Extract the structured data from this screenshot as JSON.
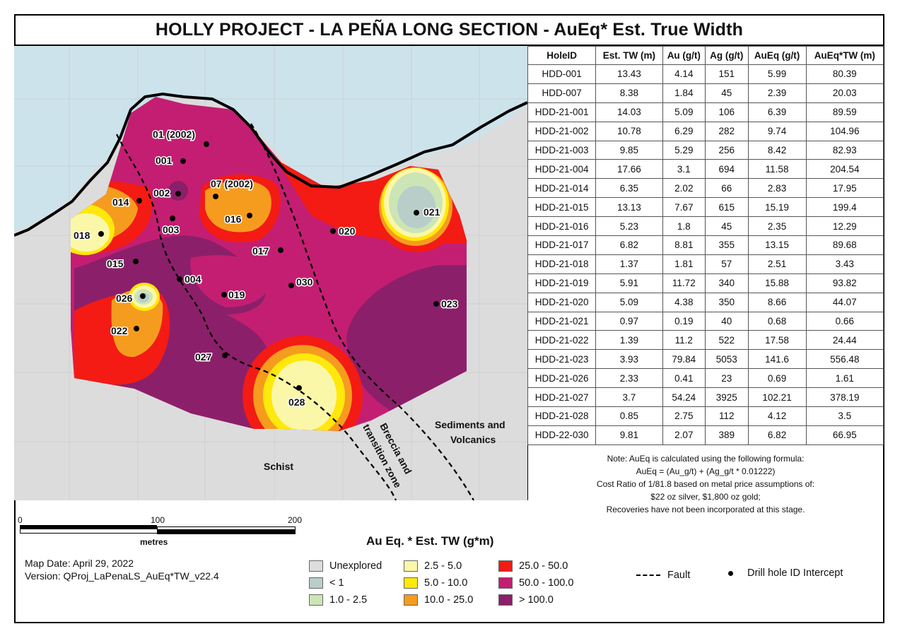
{
  "title": "HOLLY PROJECT  - LA PEÑA LONG SECTION - AuEq* Est. True Width",
  "colors": {
    "sky": "#cde3eb",
    "unexplored": "#dcdcdc",
    "lt1": "#b9cdc9",
    "c1_2_5": "#cbe5b6",
    "c2_5_5": "#fbf7a9",
    "c5_10": "#ffe80b",
    "c10_25": "#f59c1e",
    "c25_50": "#f31b14",
    "c50_100": "#c41e72",
    "gt100": "#8c1f6a"
  },
  "map": {
    "labels": {
      "h01_2002": "01 (2002)",
      "h001": "001",
      "h002": "002",
      "h07_2002": "07 (2002)",
      "h014": "014",
      "h016": "016",
      "h021": "021",
      "h018": "018",
      "h003": "003",
      "h020": "020",
      "h017": "017",
      "h015": "015",
      "h004": "004",
      "h030": "030",
      "h019": "019",
      "h026": "026",
      "h023": "023",
      "h022": "022",
      "h027": "027",
      "h028": "028"
    },
    "zones": {
      "sediments_1": "Sediments and",
      "sediments_2": "Volcanics",
      "schist": "Schist",
      "breccia_1": "Breccia and",
      "breccia_2": "transition zone"
    }
  },
  "table": {
    "headers": [
      "HoleID",
      "Est. TW (m)",
      "Au (g/t)",
      "Ag (g/t)",
      "AuEq (g/t)",
      "AuEq*TW (m)"
    ],
    "rows": [
      [
        "HDD-001",
        "13.43",
        "4.14",
        "151",
        "5.99",
        "80.39"
      ],
      [
        "HDD-007",
        "8.38",
        "1.84",
        "45",
        "2.39",
        "20.03"
      ],
      [
        "HDD-21-001",
        "14.03",
        "5.09",
        "106",
        "6.39",
        "89.59"
      ],
      [
        "HDD-21-002",
        "10.78",
        "6.29",
        "282",
        "9.74",
        "104.96"
      ],
      [
        "HDD-21-003",
        "9.85",
        "5.29",
        "256",
        "8.42",
        "82.93"
      ],
      [
        "HDD-21-004",
        "17.66",
        "3.1",
        "694",
        "11.58",
        "204.54"
      ],
      [
        "HDD-21-014",
        "6.35",
        "2.02",
        "66",
        "2.83",
        "17.95"
      ],
      [
        "HDD-21-015",
        "13.13",
        "7.67",
        "615",
        "15.19",
        "199.4"
      ],
      [
        "HDD-21-016",
        "5.23",
        "1.8",
        "45",
        "2.35",
        "12.29"
      ],
      [
        "HDD-21-017",
        "6.82",
        "8.81",
        "355",
        "13.15",
        "89.68"
      ],
      [
        "HDD-21-018",
        "1.37",
        "1.81",
        "57",
        "2.51",
        "3.43"
      ],
      [
        "HDD-21-019",
        "5.91",
        "11.72",
        "340",
        "15.88",
        "93.82"
      ],
      [
        "HDD-21-020",
        "5.09",
        "4.38",
        "350",
        "8.66",
        "44.07"
      ],
      [
        "HDD-21-021",
        "0.97",
        "0.19",
        "40",
        "0.68",
        "0.66"
      ],
      [
        "HDD-21-022",
        "1.39",
        "11.2",
        "522",
        "17.58",
        "24.44"
      ],
      [
        "HDD-21-023",
        "3.93",
        "79.84",
        "5053",
        "141.6",
        "556.48"
      ],
      [
        "HDD-21-026",
        "2.33",
        "0.41",
        "23",
        "0.69",
        "1.61"
      ],
      [
        "HDD-21-027",
        "3.7",
        "54.24",
        "3925",
        "102.21",
        "378.19"
      ],
      [
        "HDD-21-028",
        "0.85",
        "2.75",
        "112",
        "4.12",
        "3.5"
      ],
      [
        "HDD-22-030",
        "9.81",
        "2.07",
        "389",
        "6.82",
        "66.95"
      ]
    ]
  },
  "note": [
    "Note: AuEq is calculated using the following formula:",
    "AuEq =  (Au_g/t) + (Ag_g/t * 0.01222)",
    "Cost Ratio of 1/81.8 based on metal price assumptions of:",
    "$22 oz silver, $1,800 oz gold;",
    "Recoveries have not been incorporated at this stage."
  ],
  "scale": {
    "ticks": [
      "0",
      "100",
      "200"
    ],
    "unit": "metres"
  },
  "map_date": "Map Date: April 29, 2022",
  "version": "Version: QProj_LaPenaLS_AuEq*TW_v22.4",
  "legend": {
    "title": "Au Eq. *  Est. TW (g*m)",
    "items": [
      {
        "label": "Unexplored",
        "color": "#dcdcdc"
      },
      {
        "label": "< 1",
        "color": "#b9cdc9"
      },
      {
        "label": "1.0 - 2.5",
        "color": "#cbe5b6"
      },
      {
        "label": "2.5 - 5.0",
        "color": "#fbf7a9"
      },
      {
        "label": "5.0 - 10.0",
        "color": "#ffe80b"
      },
      {
        "label": "10.0 - 25.0",
        "color": "#f59c1e"
      },
      {
        "label": "25.0 - 50.0",
        "color": "#f31b14"
      },
      {
        "label": "50.0 - 100.0",
        "color": "#c41e72"
      },
      {
        "label": "> 100.0",
        "color": "#8c1f6a"
      }
    ],
    "fault": "Fault",
    "drill": "Drill hole ID Intercept"
  }
}
